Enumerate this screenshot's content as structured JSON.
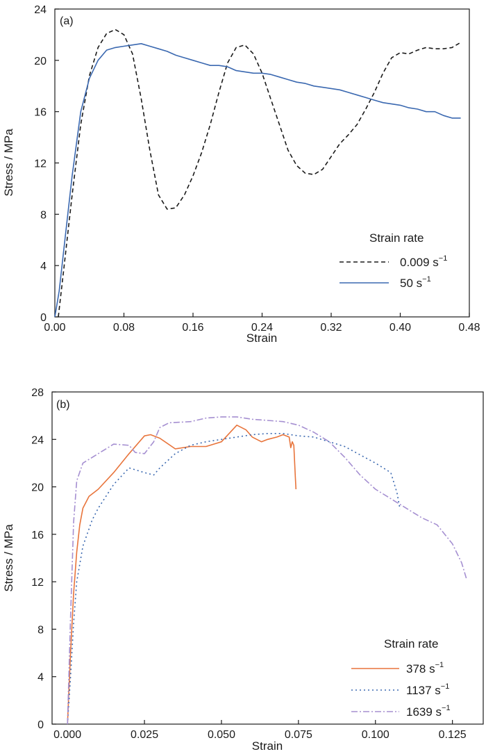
{
  "chart_data": [
    {
      "panel_label": "(a)",
      "type": "line",
      "xlabel": "Strain",
      "ylabel": "Stress / MPa",
      "xlim": [
        0,
        0.48
      ],
      "ylim": [
        0,
        24
      ],
      "xticks": [
        "0.00",
        "0.08",
        "0.16",
        "0.24",
        "0.32",
        "0.40",
        "0.48"
      ],
      "yticks": [
        "0",
        "4",
        "8",
        "12",
        "16",
        "20",
        "24"
      ],
      "legend_title": "Strain rate",
      "legend_placement": "lower-right",
      "series": [
        {
          "name": "0.009 s",
          "name_sup": "−1",
          "color": "#1a1a1a",
          "dash": "6,4",
          "points": [
            [
              0.004,
              0
            ],
            [
              0.01,
              3.5
            ],
            [
              0.02,
              9.5
            ],
            [
              0.03,
              15
            ],
            [
              0.04,
              18.8
            ],
            [
              0.05,
              21
            ],
            [
              0.06,
              22.1
            ],
            [
              0.07,
              22.4
            ],
            [
              0.08,
              22
            ],
            [
              0.09,
              20.5
            ],
            [
              0.1,
              17
            ],
            [
              0.11,
              13
            ],
            [
              0.12,
              9.5
            ],
            [
              0.13,
              8.4
            ],
            [
              0.14,
              8.5
            ],
            [
              0.15,
              9.5
            ],
            [
              0.16,
              11
            ],
            [
              0.17,
              12.8
            ],
            [
              0.18,
              15
            ],
            [
              0.19,
              17.5
            ],
            [
              0.2,
              19.8
            ],
            [
              0.21,
              21
            ],
            [
              0.22,
              21.2
            ],
            [
              0.23,
              20.5
            ],
            [
              0.24,
              19
            ],
            [
              0.25,
              17
            ],
            [
              0.26,
              15
            ],
            [
              0.27,
              13
            ],
            [
              0.28,
              11.8
            ],
            [
              0.29,
              11.2
            ],
            [
              0.3,
              11.1
            ],
            [
              0.31,
              11.5
            ],
            [
              0.32,
              12.5
            ],
            [
              0.33,
              13.5
            ],
            [
              0.34,
              14.2
            ],
            [
              0.35,
              15
            ],
            [
              0.36,
              16.2
            ],
            [
              0.37,
              17.5
            ],
            [
              0.38,
              19
            ],
            [
              0.39,
              20.2
            ],
            [
              0.4,
              20.6
            ],
            [
              0.41,
              20.5
            ],
            [
              0.42,
              20.8
            ],
            [
              0.43,
              21
            ],
            [
              0.44,
              20.9
            ],
            [
              0.45,
              20.9
            ],
            [
              0.46,
              21
            ],
            [
              0.47,
              21.4
            ]
          ]
        },
        {
          "name": "50 s",
          "name_sup": "−1",
          "color": "#3a68b0",
          "dash": "",
          "points": [
            [
              0,
              0
            ],
            [
              0.005,
              2
            ],
            [
              0.01,
              5
            ],
            [
              0.02,
              11
            ],
            [
              0.03,
              16
            ],
            [
              0.04,
              18.6
            ],
            [
              0.05,
              20
            ],
            [
              0.06,
              20.8
            ],
            [
              0.07,
              21
            ],
            [
              0.08,
              21.1
            ],
            [
              0.09,
              21.2
            ],
            [
              0.1,
              21.3
            ],
            [
              0.11,
              21.1
            ],
            [
              0.12,
              20.9
            ],
            [
              0.13,
              20.7
            ],
            [
              0.14,
              20.4
            ],
            [
              0.15,
              20.2
            ],
            [
              0.16,
              20
            ],
            [
              0.17,
              19.8
            ],
            [
              0.18,
              19.6
            ],
            [
              0.19,
              19.6
            ],
            [
              0.2,
              19.5
            ],
            [
              0.21,
              19.2
            ],
            [
              0.22,
              19.1
            ],
            [
              0.23,
              19
            ],
            [
              0.24,
              19
            ],
            [
              0.25,
              18.9
            ],
            [
              0.26,
              18.7
            ],
            [
              0.27,
              18.5
            ],
            [
              0.28,
              18.3
            ],
            [
              0.29,
              18.2
            ],
            [
              0.3,
              18
            ],
            [
              0.31,
              17.9
            ],
            [
              0.32,
              17.8
            ],
            [
              0.33,
              17.7
            ],
            [
              0.34,
              17.5
            ],
            [
              0.35,
              17.3
            ],
            [
              0.36,
              17.1
            ],
            [
              0.37,
              16.9
            ],
            [
              0.38,
              16.7
            ],
            [
              0.39,
              16.6
            ],
            [
              0.4,
              16.5
            ],
            [
              0.41,
              16.3
            ],
            [
              0.42,
              16.2
            ],
            [
              0.43,
              16
            ],
            [
              0.44,
              16
            ],
            [
              0.45,
              15.7
            ],
            [
              0.46,
              15.5
            ],
            [
              0.47,
              15.5
            ]
          ]
        }
      ]
    },
    {
      "panel_label": "(b)",
      "type": "line",
      "xlabel": "Strain",
      "ylabel": "Stress / MPa",
      "xlim": [
        -0.005,
        0.135
      ],
      "ylim": [
        0,
        28
      ],
      "xticks": [
        "0.000",
        "0.025",
        "0.050",
        "0.075",
        "0.100",
        "0.125"
      ],
      "yticks": [
        "0",
        "4",
        "8",
        "12",
        "16",
        "20",
        "24",
        "28"
      ],
      "legend_title": "Strain rate",
      "legend_placement": "lower-right",
      "series": [
        {
          "name": "378 s",
          "name_sup": "−1",
          "color": "#e8743b",
          "dash": "",
          "points": [
            [
              0,
              0
            ],
            [
              0.001,
              6
            ],
            [
              0.002,
              11
            ],
            [
              0.003,
              14.5
            ],
            [
              0.004,
              16.8
            ],
            [
              0.005,
              18.2
            ],
            [
              0.007,
              19.2
            ],
            [
              0.01,
              19.8
            ],
            [
              0.015,
              21.2
            ],
            [
              0.02,
              22.8
            ],
            [
              0.025,
              24.3
            ],
            [
              0.027,
              24.4
            ],
            [
              0.03,
              24.1
            ],
            [
              0.035,
              23.2
            ],
            [
              0.04,
              23.4
            ],
            [
              0.045,
              23.4
            ],
            [
              0.05,
              23.8
            ],
            [
              0.055,
              25.2
            ],
            [
              0.058,
              24.8
            ],
            [
              0.06,
              24.2
            ],
            [
              0.063,
              23.8
            ],
            [
              0.065,
              24
            ],
            [
              0.068,
              24.2
            ],
            [
              0.07,
              24.4
            ],
            [
              0.072,
              24.2
            ],
            [
              0.0725,
              23.3
            ],
            [
              0.073,
              23.8
            ],
            [
              0.0735,
              23.5
            ],
            [
              0.074,
              20.8
            ],
            [
              0.0742,
              19.8
            ]
          ]
        },
        {
          "name": "1137 s",
          "name_sup": "−1",
          "color": "#3a68b0",
          "dash": "2,4",
          "points": [
            [
              0,
              0
            ],
            [
              0.001,
              4
            ],
            [
              0.002,
              8.5
            ],
            [
              0.003,
              12
            ],
            [
              0.005,
              15
            ],
            [
              0.008,
              17.2
            ],
            [
              0.01,
              18.2
            ],
            [
              0.015,
              20.2
            ],
            [
              0.02,
              21.6
            ],
            [
              0.025,
              21.2
            ],
            [
              0.028,
              21
            ],
            [
              0.03,
              21.6
            ],
            [
              0.035,
              22.8
            ],
            [
              0.04,
              23.5
            ],
            [
              0.045,
              23.8
            ],
            [
              0.05,
              24
            ],
            [
              0.055,
              24.2
            ],
            [
              0.06,
              24.4
            ],
            [
              0.065,
              24.5
            ],
            [
              0.07,
              24.5
            ],
            [
              0.075,
              24.3
            ],
            [
              0.08,
              24.2
            ],
            [
              0.085,
              23.8
            ],
            [
              0.09,
              23.4
            ],
            [
              0.095,
              22.7
            ],
            [
              0.1,
              22
            ],
            [
              0.105,
              21.2
            ],
            [
              0.107,
              19.5
            ],
            [
              0.108,
              18.1
            ]
          ]
        },
        {
          "name": "1639 s",
          "name_sup": "−1",
          "color": "#a58fd1",
          "dash": "9,3,2,3",
          "points": [
            [
              0,
              0
            ],
            [
              0.001,
              9
            ],
            [
              0.002,
              17
            ],
            [
              0.003,
              20.5
            ],
            [
              0.005,
              22
            ],
            [
              0.01,
              22.8
            ],
            [
              0.015,
              23.6
            ],
            [
              0.02,
              23.5
            ],
            [
              0.022,
              22.9
            ],
            [
              0.025,
              22.8
            ],
            [
              0.028,
              23.8
            ],
            [
              0.03,
              25
            ],
            [
              0.033,
              25.4
            ],
            [
              0.04,
              25.5
            ],
            [
              0.045,
              25.8
            ],
            [
              0.05,
              25.9
            ],
            [
              0.055,
              25.9
            ],
            [
              0.06,
              25.7
            ],
            [
              0.065,
              25.6
            ],
            [
              0.07,
              25.5
            ],
            [
              0.075,
              25.2
            ],
            [
              0.08,
              24.6
            ],
            [
              0.085,
              23.8
            ],
            [
              0.09,
              22.5
            ],
            [
              0.095,
              21
            ],
            [
              0.1,
              19.8
            ],
            [
              0.105,
              19
            ],
            [
              0.11,
              18.2
            ],
            [
              0.115,
              17.4
            ],
            [
              0.12,
              16.8
            ],
            [
              0.125,
              15.2
            ],
            [
              0.128,
              13.6
            ],
            [
              0.1295,
              12.3
            ]
          ]
        }
      ]
    }
  ]
}
